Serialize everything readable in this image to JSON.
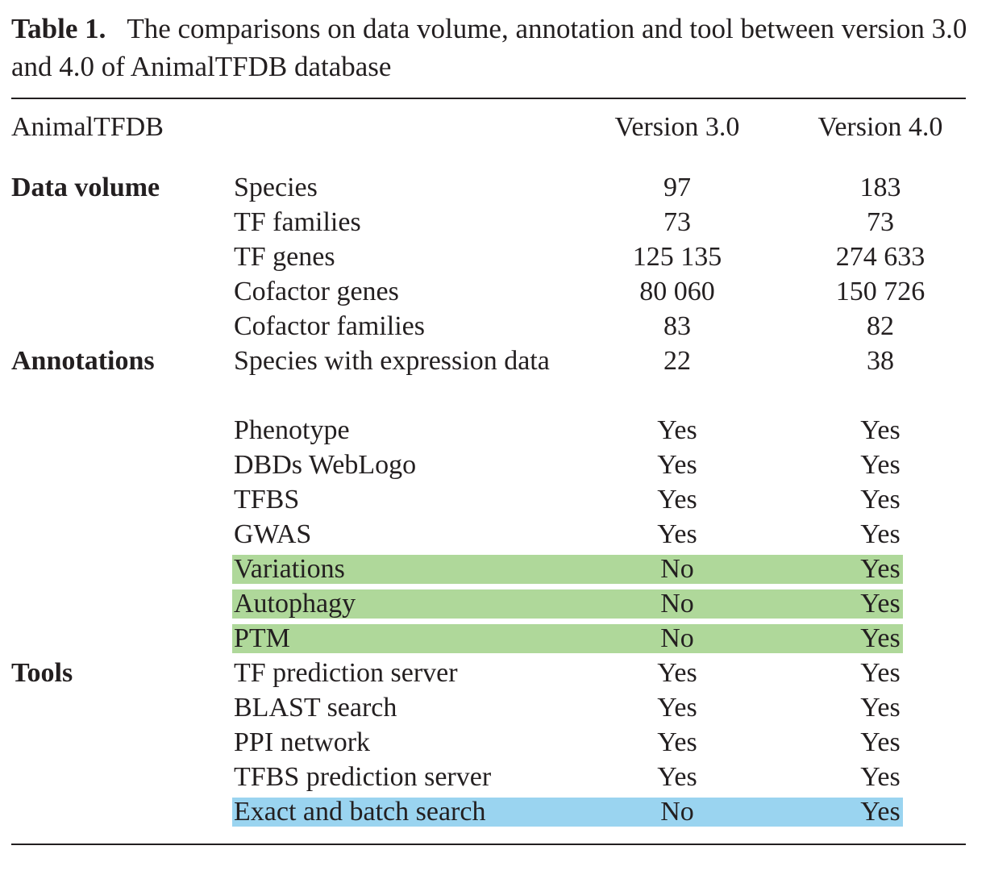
{
  "caption": {
    "label": "Table 1.",
    "text": "The comparisons on data volume, annotation and tool between version 3.0 and 4.0 of AnimalTFDB database"
  },
  "colors": {
    "highlight_green": "#afd89a",
    "highlight_blue": "#9ad4f0"
  },
  "header": {
    "col1": "AnimalTFDB",
    "col3": "Version 3.0",
    "col4": "Version 4.0"
  },
  "rows": [
    {
      "group": "Data volume",
      "item": "Species",
      "v3": "97",
      "v4": "183",
      "highlight": ""
    },
    {
      "group": "",
      "item": "TF families",
      "v3": "73",
      "v4": "73",
      "highlight": ""
    },
    {
      "group": "",
      "item": "TF genes",
      "v3": "125 135",
      "v4": "274 633",
      "highlight": ""
    },
    {
      "group": "",
      "item": "Cofactor genes",
      "v3": "80 060",
      "v4": "150 726",
      "highlight": ""
    },
    {
      "group": "",
      "item": "Cofactor families",
      "v3": "83",
      "v4": "82",
      "highlight": ""
    },
    {
      "group": "Annotations",
      "item": "Species with expression data",
      "v3": "22",
      "v4": "38",
      "highlight": ""
    },
    {
      "group": "",
      "item": "Phenotype",
      "v3": "Yes",
      "v4": "Yes",
      "highlight": ""
    },
    {
      "group": "",
      "item": "DBDs WebLogo",
      "v3": "Yes",
      "v4": "Yes",
      "highlight": ""
    },
    {
      "group": "",
      "item": "TFBS",
      "v3": "Yes",
      "v4": "Yes",
      "highlight": ""
    },
    {
      "group": "",
      "item": "GWAS",
      "v3": "Yes",
      "v4": "Yes",
      "highlight": ""
    },
    {
      "group": "",
      "item": "Variations",
      "v3": "No",
      "v4": "Yes",
      "highlight": "green"
    },
    {
      "group": "",
      "item": "Autophagy",
      "v3": "No",
      "v4": "Yes",
      "highlight": "green"
    },
    {
      "group": "",
      "item": "PTM",
      "v3": "No",
      "v4": "Yes",
      "highlight": "green"
    },
    {
      "group": "Tools",
      "item": "TF prediction server",
      "v3": "Yes",
      "v4": "Yes",
      "highlight": ""
    },
    {
      "group": "",
      "item": "BLAST search",
      "v3": "Yes",
      "v4": "Yes",
      "highlight": ""
    },
    {
      "group": "",
      "item": "PPI network",
      "v3": "Yes",
      "v4": "Yes",
      "highlight": ""
    },
    {
      "group": "",
      "item": "TFBS prediction server",
      "v3": "Yes",
      "v4": "Yes",
      "highlight": ""
    },
    {
      "group": "",
      "item": "Exact and batch search",
      "v3": "No",
      "v4": "Yes",
      "highlight": "blue"
    }
  ]
}
